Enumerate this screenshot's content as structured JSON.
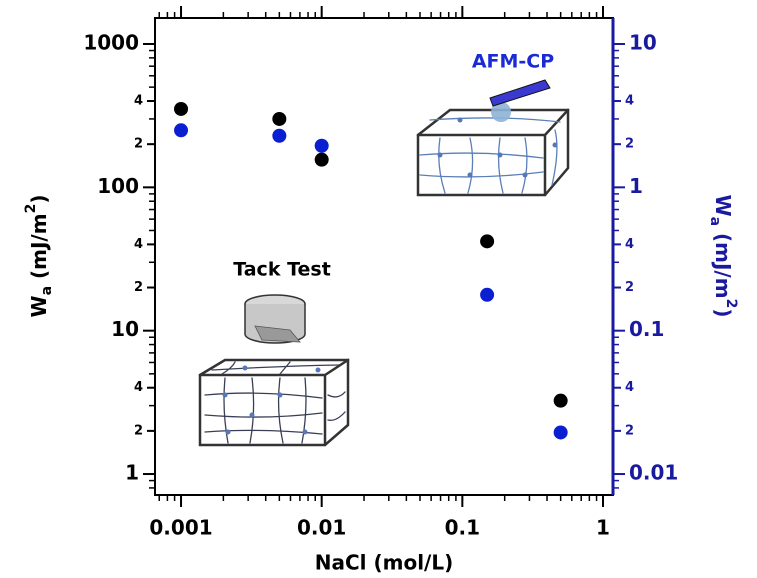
{
  "chart_data": {
    "type": "scatter",
    "xlabel": "NaCl (mol/L)",
    "ylabel": [
      "W",
      "a",
      " (mJ/m",
      "2",
      ")"
    ],
    "y2label": [
      "W",
      "a",
      " (mJ/m",
      "2",
      ")"
    ],
    "annotations": [
      "AFM-CP",
      "Tack Test"
    ],
    "annotation_colors": [
      "#1a2bd6",
      "#000000"
    ],
    "xscale": "log",
    "yscale": "log",
    "y2scale": "log",
    "x": [
      0.001,
      0.005,
      0.01,
      0.15,
      0.5
    ],
    "series": [
      {
        "color": "#000000",
        "values": [
          352,
          300,
          156,
          42,
          3.25
        ]
      },
      {
        "color": "#0a1ed2",
        "axis": "y2",
        "values": [
          2.5,
          2.29,
          1.95,
          0.178,
          0.0195
        ]
      }
    ],
    "xlim": [
      0.000653,
      1.178
    ],
    "xticks": [
      0.001,
      0.01,
      0.1,
      1
    ],
    "ylim": [
      0.714,
      1518
    ],
    "yticks": [
      1,
      {
        "value": 2,
        "label": "2"
      },
      {
        "value": 4,
        "label": "4"
      },
      10,
      {
        "value": 20,
        "label": "2"
      },
      {
        "value": 40,
        "label": "4"
      },
      100,
      {
        "value": 200,
        "label": "2"
      },
      {
        "value": 400,
        "label": "4"
      },
      1000
    ],
    "y2lim": [
      0.00714,
      15.18
    ],
    "y2ticks": [
      0.01,
      {
        "value": 0.02,
        "label": "2"
      },
      {
        "value": 0.04,
        "label": "4"
      },
      0.1,
      {
        "value": 0.2,
        "label": "2"
      },
      {
        "value": 0.4,
        "label": "4"
      },
      1,
      2,
      4,
      10
    ],
    "y2color": "#1a1aa0",
    "minor_ticks": true
  }
}
